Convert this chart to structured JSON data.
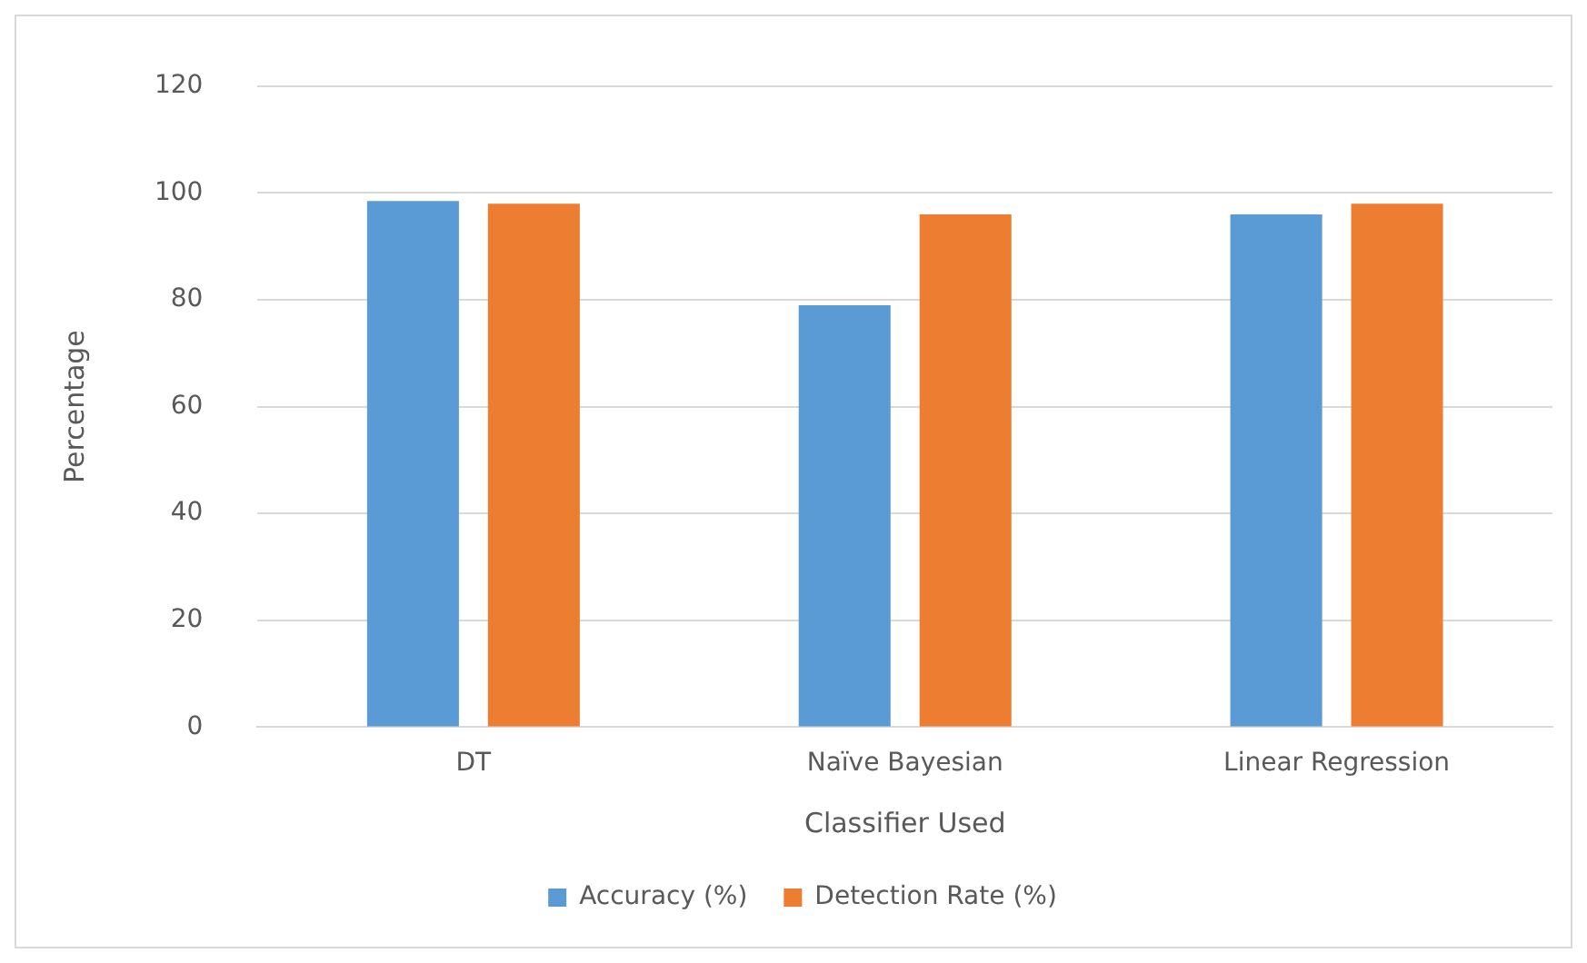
{
  "chart_data": {
    "type": "bar",
    "xlabel": "Classifier Used",
    "ylabel": "Percentage",
    "categories": [
      "DT",
      "Naïve Bayesian",
      "Linear Regression"
    ],
    "series": [
      {
        "name": "Accuracy (%)",
        "color": "#5b9bd5",
        "values": [
          98.5,
          79,
          96
        ]
      },
      {
        "name": "Detection Rate (%)",
        "color": "#ed7d31",
        "values": [
          98,
          96,
          98
        ]
      }
    ],
    "ylim": [
      0,
      120
    ],
    "yticks": [
      0,
      20,
      40,
      60,
      80,
      100,
      120
    ],
    "grid": "y",
    "legend": "bottom"
  }
}
